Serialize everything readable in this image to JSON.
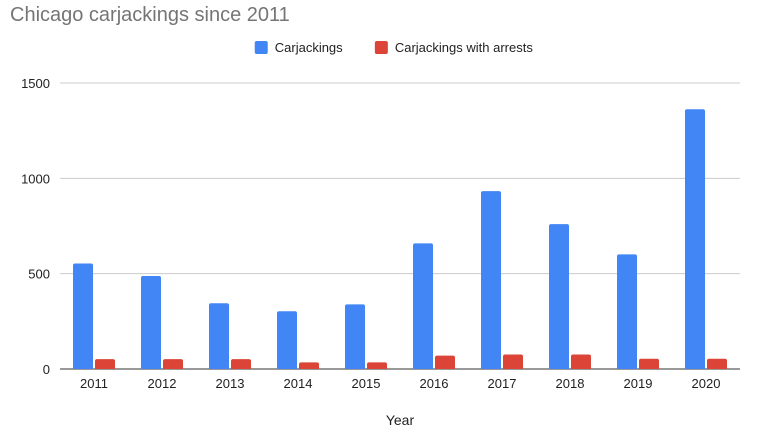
{
  "chart_data": {
    "type": "bar",
    "title": "Chicago carjackings since 2011",
    "xlabel": "Year",
    "ylabel": "",
    "categories": [
      "2011",
      "2012",
      "2013",
      "2014",
      "2015",
      "2016",
      "2017",
      "2018",
      "2019",
      "2020"
    ],
    "series": [
      {
        "name": "Carjackings",
        "color": "#4285f4",
        "values": [
          553,
          488,
          345,
          303,
          339,
          659,
          933,
          760,
          601,
          1362
        ]
      },
      {
        "name": "Carjackings with arrests",
        "color": "#db4437",
        "values": [
          52,
          52,
          52,
          35,
          35,
          70,
          76,
          76,
          54,
          54
        ]
      }
    ],
    "ylim": [
      0,
      1500
    ],
    "yticks": [
      0,
      500,
      1000,
      1500
    ],
    "grid": true,
    "legend_position": "top-center"
  }
}
